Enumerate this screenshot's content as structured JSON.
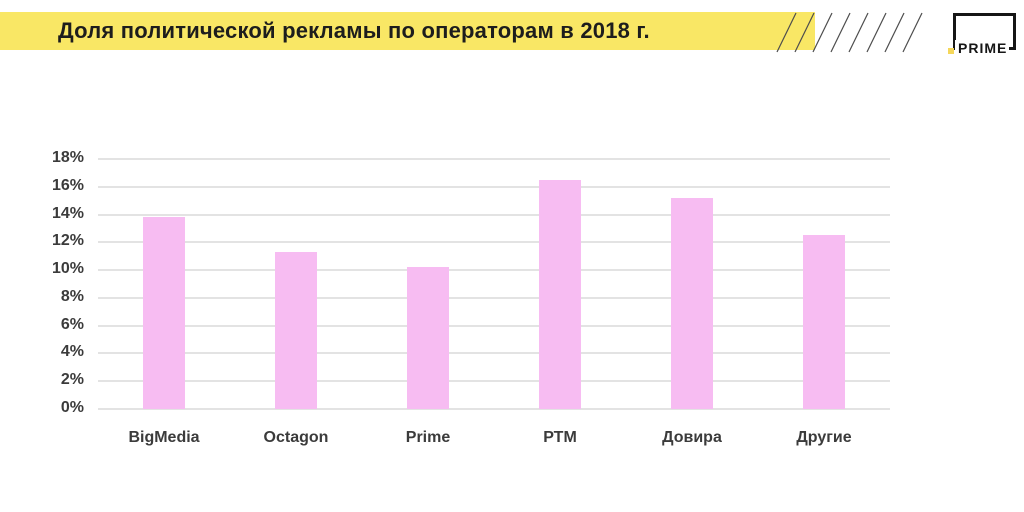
{
  "logo": {
    "text": "PRIME"
  },
  "colors": {
    "banner": "#F9E765",
    "title_text": "#1D1D1D",
    "bar": "#F7BCF2",
    "gridline": "#C7C7C7",
    "axis_text": "#3B3B3B",
    "accent_dot": "#F5D75A",
    "hatch": "#4D4D4D"
  },
  "chart_data": {
    "type": "bar",
    "title": "Доля политической рекламы по операторам в 2018 г.",
    "categories": [
      "BigMedia",
      "Octagon",
      "Prime",
      "РТМ",
      "Довира",
      "Другие"
    ],
    "values": [
      13.8,
      11.3,
      10.2,
      16.5,
      15.2,
      12.5
    ],
    "xlabel": "",
    "ylabel": "",
    "ylim": [
      0,
      18
    ],
    "yticks": [
      0,
      2,
      4,
      6,
      8,
      10,
      12,
      14,
      16,
      18
    ],
    "ytick_format": "{v}%",
    "grid": true,
    "legend": false,
    "bar_color": "#F7BCF2"
  }
}
